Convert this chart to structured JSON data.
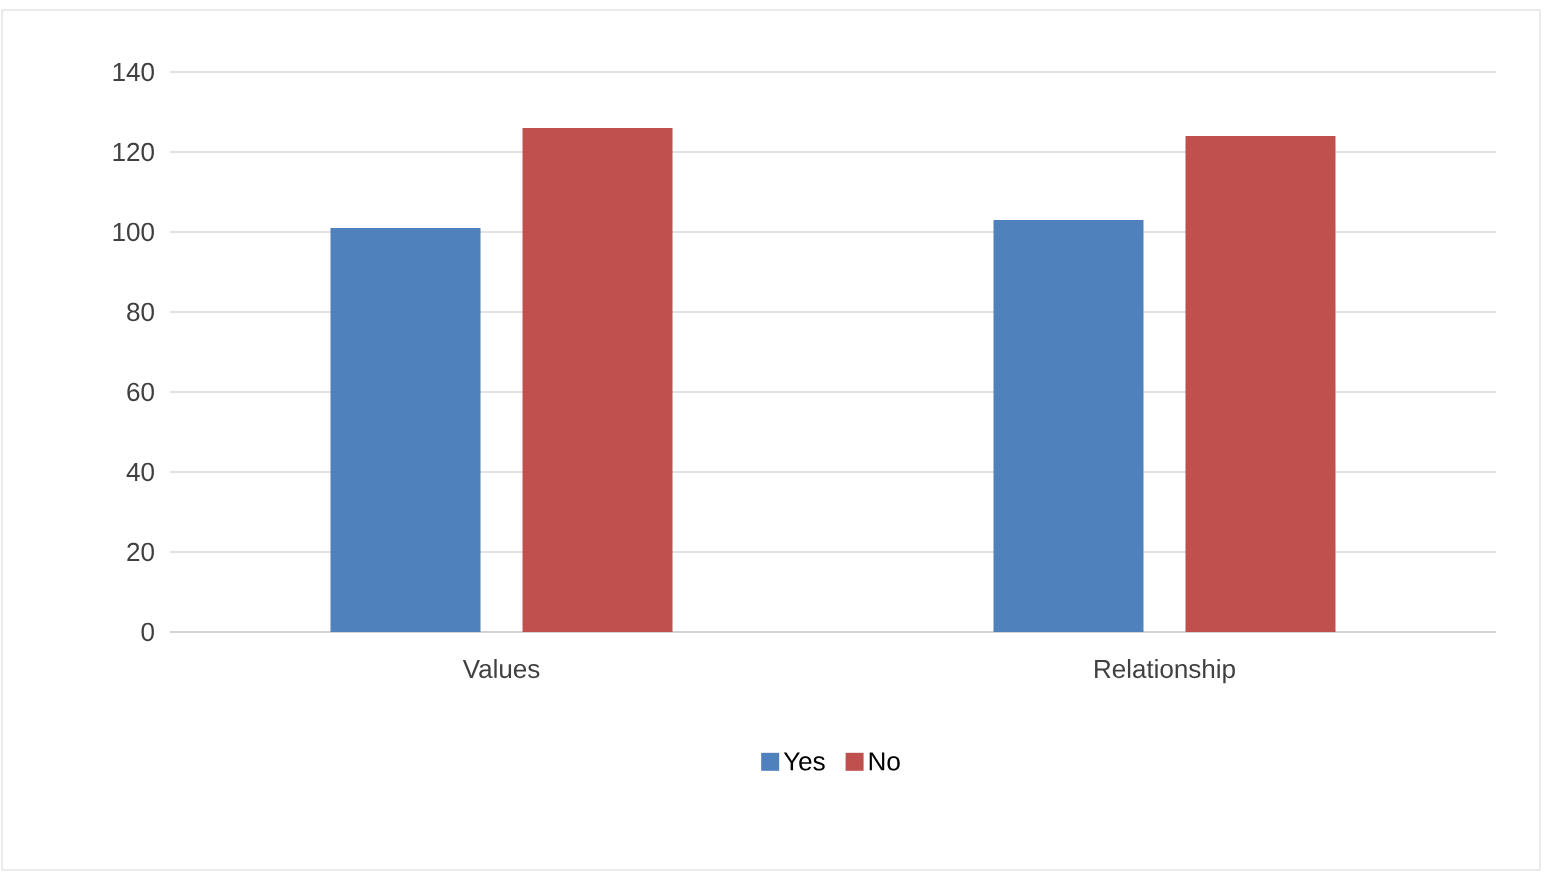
{
  "chart_data": {
    "type": "bar",
    "categories": [
      "Values",
      "Relationship"
    ],
    "series": [
      {
        "name": "Yes",
        "color": "#4f81bd",
        "values": [
          101,
          103
        ]
      },
      {
        "name": "No",
        "color": "#c0504d",
        "values": [
          126,
          124
        ]
      }
    ],
    "ylim": [
      0,
      140
    ],
    "yticks": [
      0,
      20,
      40,
      60,
      80,
      100,
      120,
      140
    ],
    "grid": "y",
    "legend": "bottom"
  }
}
